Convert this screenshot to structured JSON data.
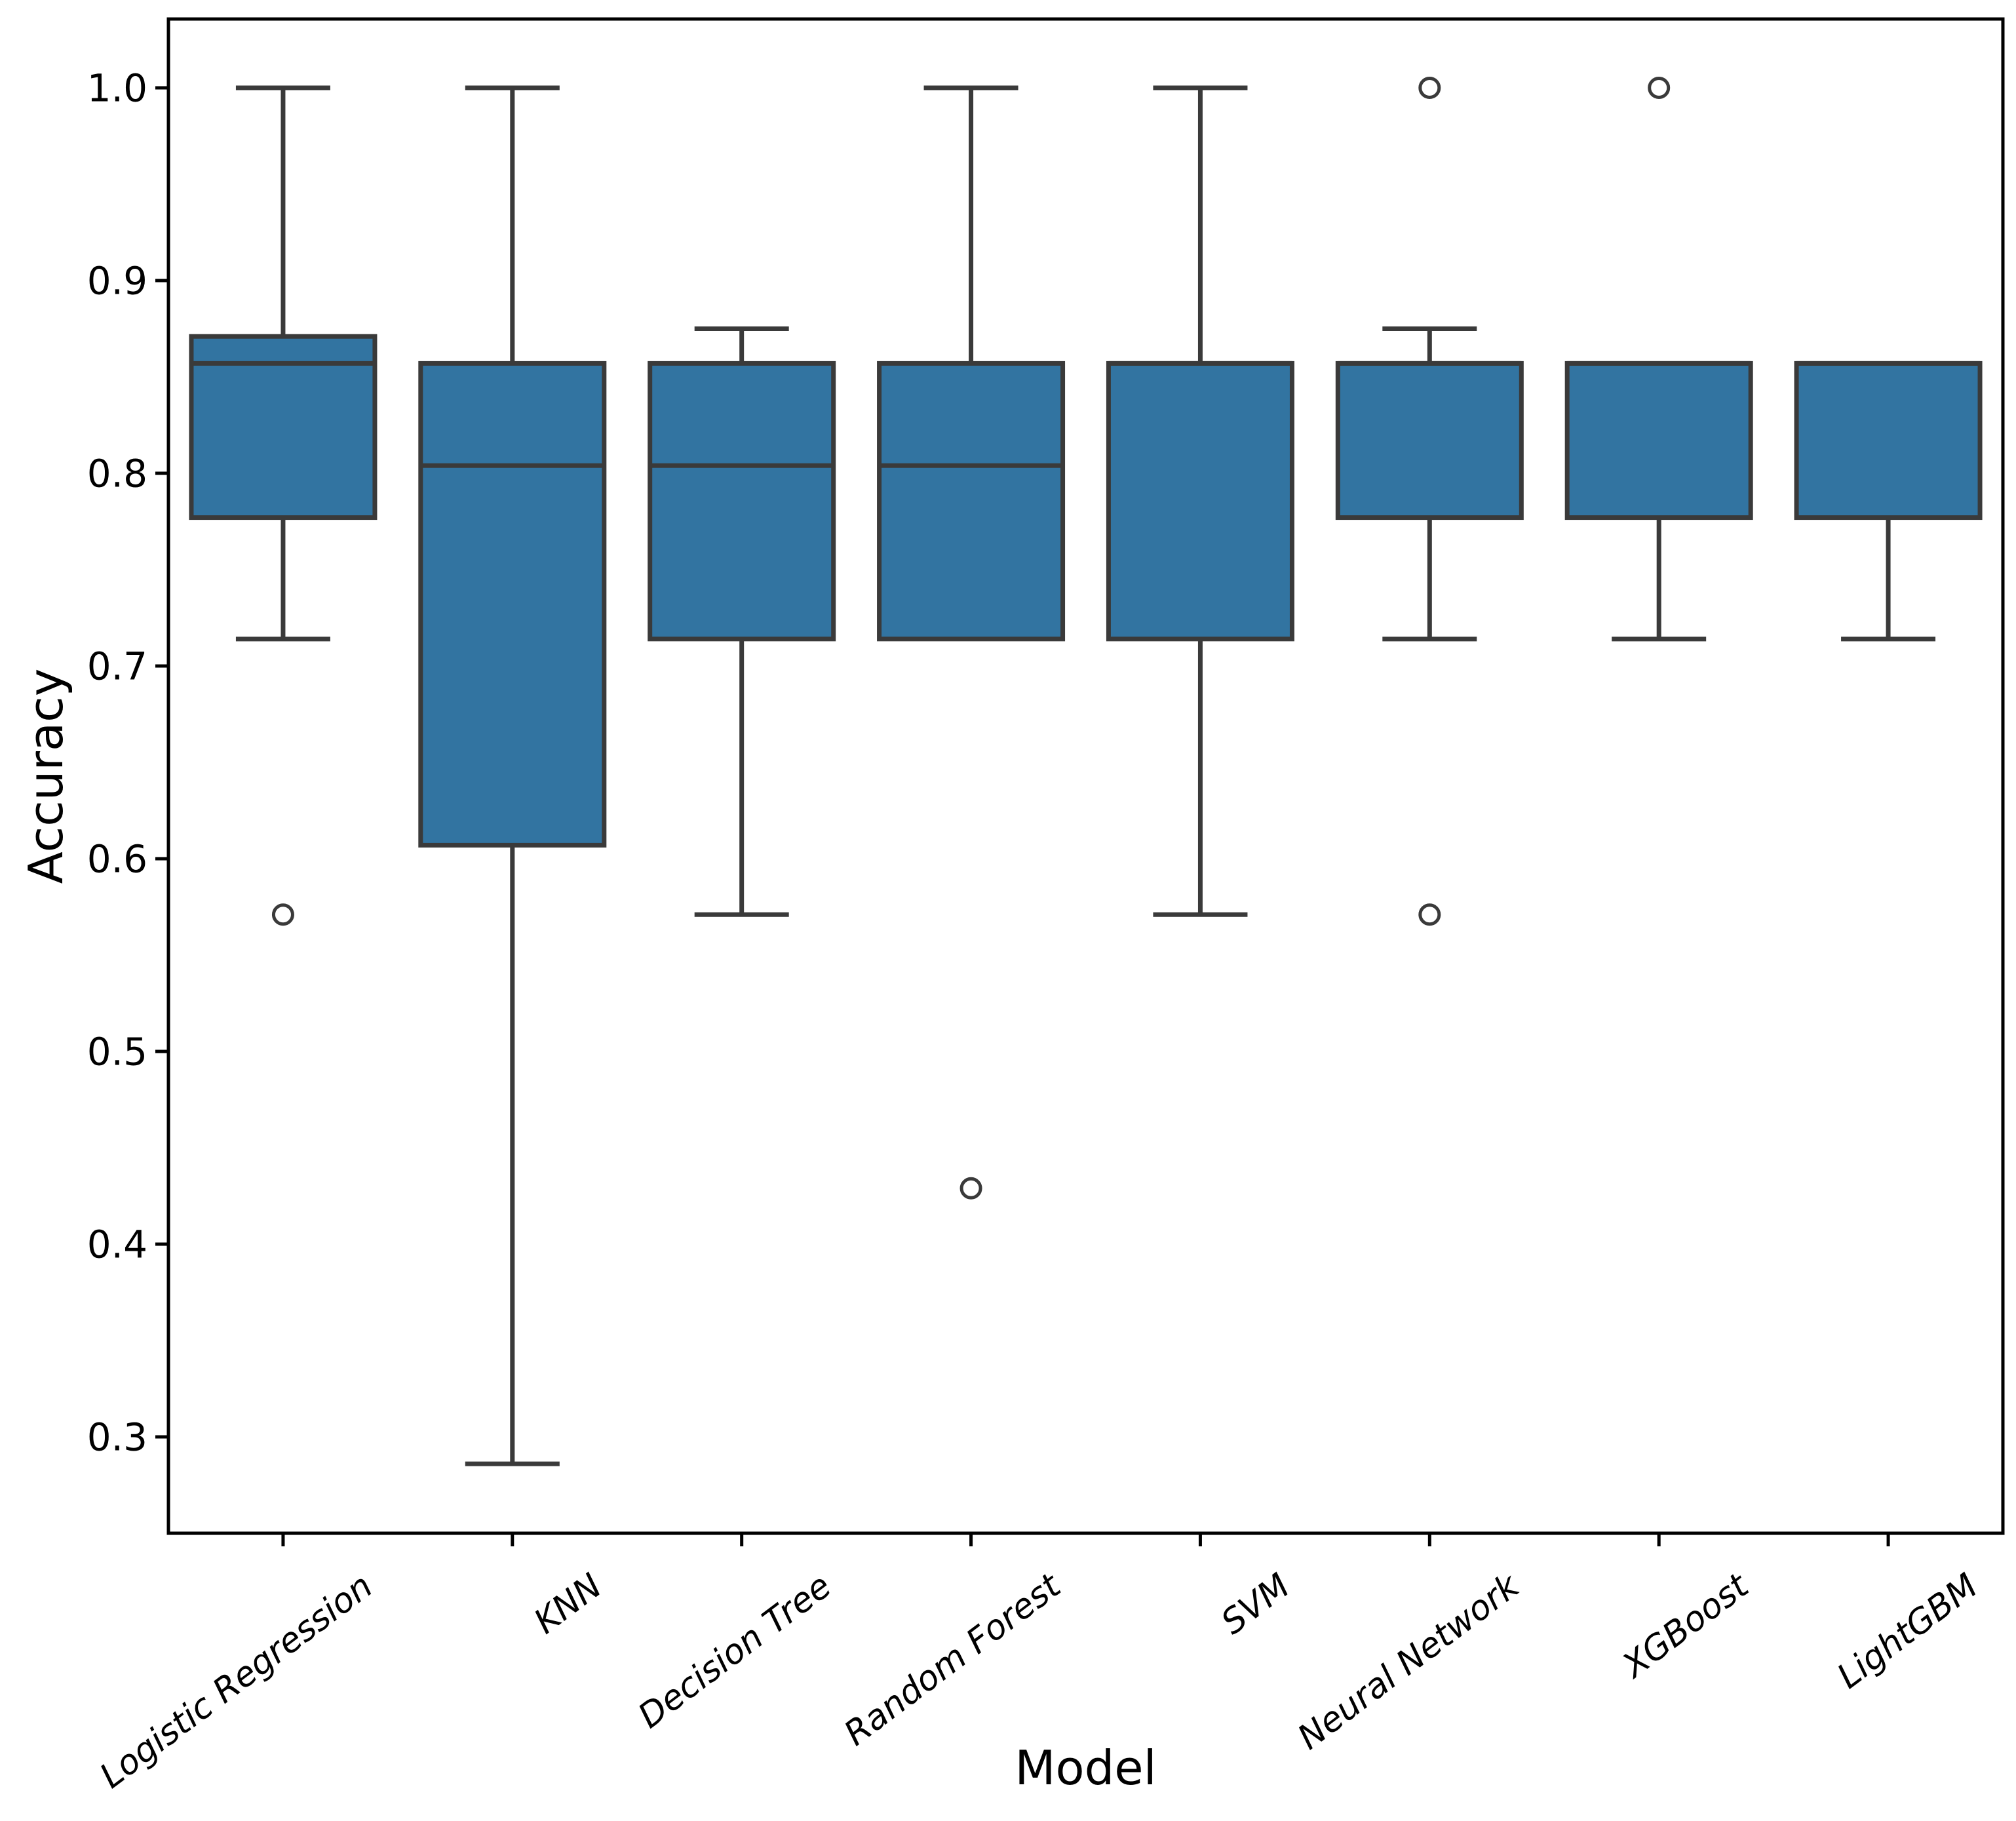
{
  "chart_data": {
    "type": "boxplot",
    "title": "",
    "xlabel": "Model",
    "ylabel": "Accuracy",
    "categories": [
      "Logistic Regression",
      "KNN",
      "Decision Tree",
      "Random Forest",
      "SVM",
      "Neural Network",
      "XGBoost",
      "LightGBM"
    ],
    "series": [
      {
        "label": "Logistic Regression",
        "whisker_low": 0.714,
        "q1": 0.777,
        "median": 0.857,
        "q3": 0.871,
        "whisker_high": 1.0,
        "outliers": [
          0.571
        ]
      },
      {
        "label": "KNN",
        "whisker_low": 0.286,
        "q1": 0.607,
        "median": 0.804,
        "q3": 0.857,
        "whisker_high": 1.0,
        "outliers": []
      },
      {
        "label": "Decision Tree",
        "whisker_low": 0.571,
        "q1": 0.714,
        "median": 0.804,
        "q3": 0.857,
        "whisker_high": 0.875,
        "outliers": []
      },
      {
        "label": "Random Forest",
        "whisker_low": 0.714,
        "q1": 0.714,
        "median": 0.804,
        "q3": 0.857,
        "whisker_high": 1.0,
        "outliers": [
          0.429
        ]
      },
      {
        "label": "SVM",
        "whisker_low": 0.571,
        "q1": 0.714,
        "median": 0.857,
        "q3": 0.857,
        "whisker_high": 1.0,
        "outliers": []
      },
      {
        "label": "Neural Network",
        "whisker_low": 0.714,
        "q1": 0.777,
        "median": 0.857,
        "q3": 0.857,
        "whisker_high": 0.875,
        "outliers": [
          1.0,
          0.571
        ]
      },
      {
        "label": "XGBoost",
        "whisker_low": 0.714,
        "q1": 0.777,
        "median": 0.857,
        "q3": 0.857,
        "whisker_high": 0.857,
        "outliers": [
          1.0
        ]
      },
      {
        "label": "LightGBM",
        "whisker_low": 0.714,
        "q1": 0.777,
        "median": 0.857,
        "q3": 0.857,
        "whisker_high": 0.857,
        "outliers": []
      }
    ],
    "yticks": [
      {
        "v": 1.0,
        "label": "1.0"
      },
      {
        "v": 0.9,
        "label": "0.9"
      },
      {
        "v": 0.8,
        "label": "0.8"
      },
      {
        "v": 0.7,
        "label": "0.7"
      },
      {
        "v": 0.6,
        "label": "0.6"
      },
      {
        "v": 0.5,
        "label": "0.5"
      },
      {
        "v": 0.4,
        "label": "0.4"
      },
      {
        "v": 0.3,
        "label": "0.3"
      }
    ],
    "ylim": [
      0.25,
      1.0357
    ],
    "grid": false,
    "legend_position": "none",
    "colors": {
      "box_fill": "#3274a1",
      "box_line": "#3a3a3a",
      "spine": "#000000",
      "tick": "#000000",
      "text": "#000000",
      "outlier_fill": "#ffffff",
      "background": "#ffffff"
    }
  }
}
